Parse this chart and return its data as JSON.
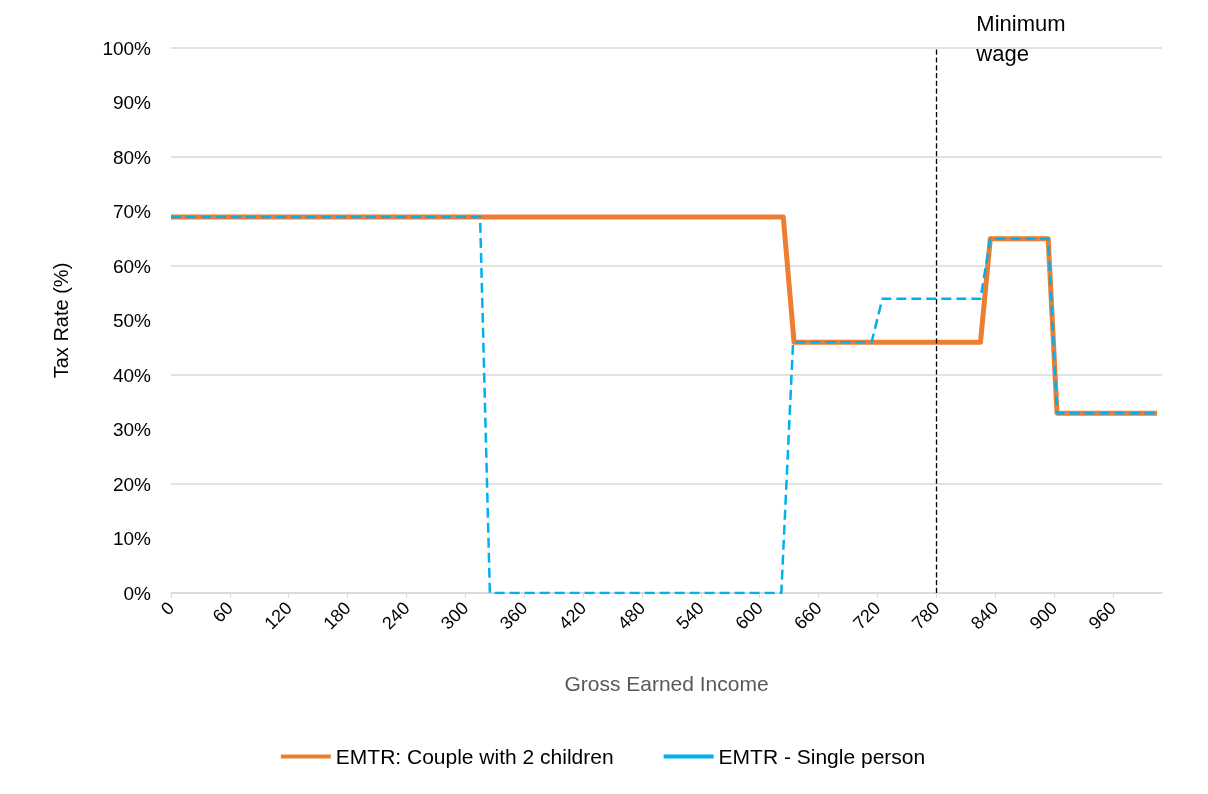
{
  "chart_data": {
    "type": "line",
    "xlabel": "Gross Earned Income",
    "ylabel": "Tax Rate (%)",
    "xlim": [
      0,
      1010
    ],
    "xticks": [
      0,
      60,
      120,
      180,
      240,
      300,
      360,
      420,
      480,
      540,
      600,
      660,
      720,
      780,
      840,
      900,
      960
    ],
    "ylim": [
      0,
      100
    ],
    "yticks": [
      {
        "value": 0,
        "label": "0%"
      },
      {
        "value": 10,
        "label": "10%"
      },
      {
        "value": 20,
        "label": "20%"
      },
      {
        "value": 30,
        "label": "30%"
      },
      {
        "value": 40,
        "label": "40%"
      },
      {
        "value": 50,
        "label": "50%"
      },
      {
        "value": 60,
        "label": "60%"
      },
      {
        "value": 70,
        "label": "70%"
      },
      {
        "value": 80,
        "label": "80%"
      },
      {
        "value": 90,
        "label": "90%"
      },
      {
        "value": 100,
        "label": "100%"
      }
    ],
    "grid": "y",
    "legend": "bottom",
    "marker": "none",
    "series": [
      {
        "name": "EMTR: Couple with 2 children",
        "color": "#ed7d31",
        "line_style": "solid",
        "x": [
          0,
          624,
          635,
          825,
          835,
          894,
          903,
          1005
        ],
        "values": [
          69,
          69,
          46,
          46,
          65,
          65,
          33,
          33
        ]
      },
      {
        "name": "EMTR - Single person",
        "color": "#00b0f0",
        "line_style": "dashed",
        "x": [
          0,
          315,
          325,
          622,
          634,
          714,
          725,
          825,
          835,
          894,
          903,
          1005
        ],
        "values": [
          69,
          69,
          0,
          0,
          46,
          46,
          54,
          54,
          65,
          65,
          33,
          33
        ]
      }
    ],
    "ref_lines": [
      {
        "axis": "x",
        "value": 780,
        "label": "Minimum\nwage",
        "color": "#000000",
        "line_style": "dashed"
      }
    ]
  }
}
